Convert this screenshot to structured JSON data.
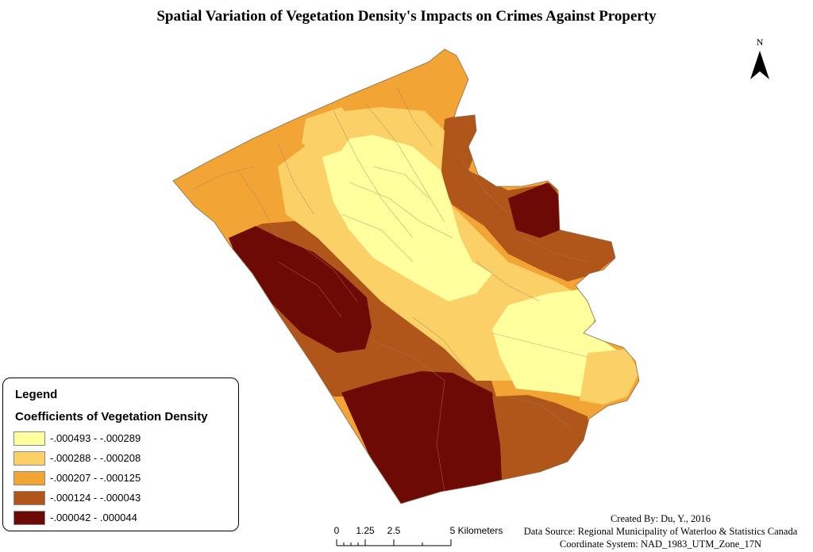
{
  "title": "Spatial Variation of Vegetation Density's Impacts on Crimes Against Property",
  "north_arrow": {
    "label": "N"
  },
  "legend": {
    "title": "Legend",
    "subtitle": "Coefficients of Vegetation Density",
    "items": [
      {
        "label": "-.000493 - -.000289",
        "color": "#ffff9e"
      },
      {
        "label": "-.000288 - -.000208",
        "color": "#fbd067"
      },
      {
        "label": "-.000207 - -.000125",
        "color": "#f2a535"
      },
      {
        "label": "-.000124 - -.000043",
        "color": "#b0561a"
      },
      {
        "label": "-.000042 - .000044",
        "color": "#6e0a05"
      }
    ]
  },
  "scale_bar": {
    "ticks": [
      "0",
      "1.25",
      "2.5",
      "5 Kilometers"
    ]
  },
  "credits": {
    "created_by": "Created By: Du, Y., 2016",
    "data_source": "Data Source: Regional Municipality of Waterloo & Statistics Canada",
    "coordinate_system": "Coordinate System: NAD_1983_UTM_Zone_17N"
  }
}
